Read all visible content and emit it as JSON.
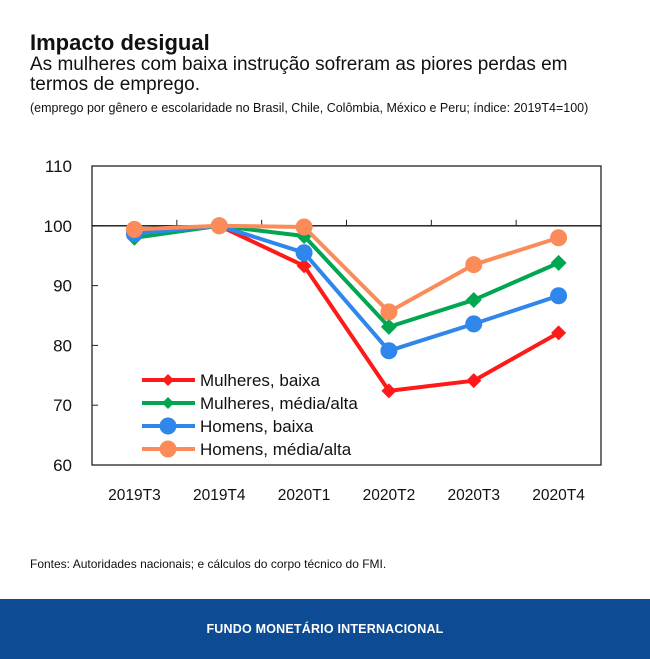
{
  "header": {
    "title": "Impacto desigual",
    "subtitle": "As mulheres com baixa instrução sofreram as piores perdas em termos de emprego.",
    "note": "(emprego por gênero e escolaridade no Brasil, Chile, Colômbia, México e Peru; índice: 2019T4=100)"
  },
  "chart_data": {
    "type": "line",
    "categories": [
      "2019T3",
      "2019T4",
      "2020T1",
      "2020T2",
      "2020T3",
      "2020T4"
    ],
    "ylim": [
      60,
      110
    ],
    "yticks": [
      60,
      70,
      80,
      90,
      100,
      110
    ],
    "reference_line": 100,
    "legend_placement": "bottom-left",
    "series": [
      {
        "name": "Mulheres, baixa",
        "color": "#ff1a1a",
        "marker": "diamond-small",
        "values": [
          98.8,
          100,
          93.3,
          72.4,
          74.1,
          82.1
        ]
      },
      {
        "name": "Mulheres, média/alta",
        "color": "#00a650",
        "marker": "diamond",
        "values": [
          98.0,
          100,
          98.3,
          83.1,
          87.6,
          93.8
        ]
      },
      {
        "name": "Homens, baixa",
        "color": "#2f86eb",
        "marker": "circle",
        "values": [
          98.7,
          100,
          95.5,
          79.1,
          83.6,
          88.3
        ]
      },
      {
        "name": "Homens, média/alta",
        "color": "#fb8c5a",
        "marker": "circle",
        "values": [
          99.4,
          100,
          99.8,
          85.6,
          93.5,
          98.0
        ]
      }
    ]
  },
  "source": "Fontes: Autoridades nacionais; e cálculos do corpo técnico do FMI.",
  "footer": "FUNDO MONETÁRIO INTERNACIONAL"
}
